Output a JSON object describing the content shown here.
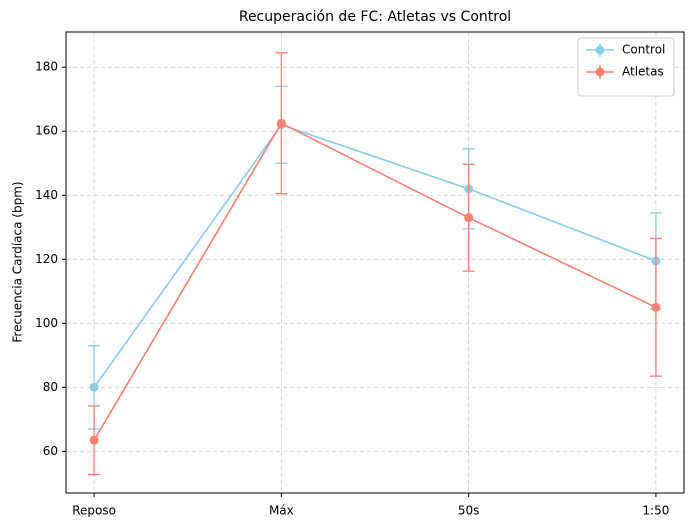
{
  "chart_data": {
    "type": "line",
    "title": "Recuperación de FC: Atletas vs Control",
    "y_label": "Frecuencia Cardíaca (bpm)",
    "categories": [
      "Reposo",
      "Máx",
      "50s",
      "1:50"
    ],
    "series": [
      {
        "name": "Control",
        "color": "#87ceeb",
        "values": [
          80,
          162,
          142,
          119.5
        ],
        "errors": [
          13,
          12,
          12.5,
          15
        ]
      },
      {
        "name": "Atletas",
        "color": "#fa8072",
        "values": [
          63.5,
          162.5,
          133,
          105
        ],
        "errors": [
          10.7,
          22,
          16.7,
          21.5
        ]
      }
    ],
    "ylim": [
      47,
      191
    ],
    "yticks": [
      60,
      80,
      100,
      120,
      140,
      160,
      180
    ],
    "grid": true,
    "legend": "upper right"
  }
}
